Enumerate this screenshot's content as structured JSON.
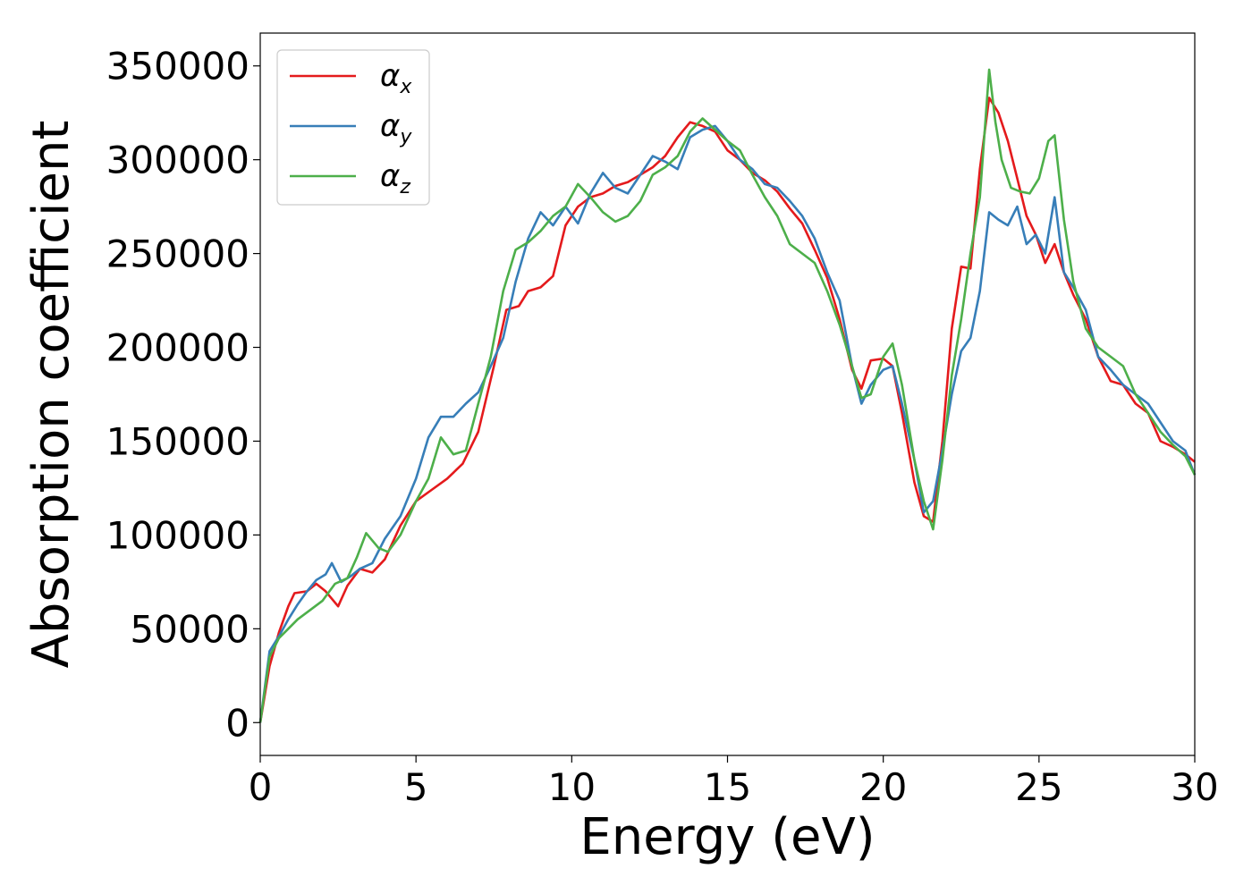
{
  "chart_data": {
    "type": "line",
    "xlabel": "Energy (eV)",
    "ylabel": "Absorption coefficient",
    "xlim": [
      0,
      30
    ],
    "ylim": [
      -17500,
      367500
    ],
    "xticks": [
      0,
      5,
      10,
      15,
      20,
      25,
      30
    ],
    "xtick_labels": [
      "0",
      "5",
      "10",
      "15",
      "20",
      "25",
      "30"
    ],
    "yticks": [
      0,
      50000,
      100000,
      150000,
      200000,
      250000,
      300000,
      350000
    ],
    "ytick_labels": [
      "0",
      "50000",
      "100000",
      "150000",
      "200000",
      "250000",
      "300000",
      "350000"
    ],
    "grid": false,
    "legend_position": "top-left",
    "series": [
      {
        "name": "α",
        "subscript": "x",
        "color": "#e41a1c",
        "x": [
          0,
          0.3,
          0.6,
          0.9,
          1.1,
          1.5,
          1.8,
          2.1,
          2.5,
          2.8,
          3.2,
          3.6,
          4.0,
          4.5,
          5.0,
          5.5,
          6.0,
          6.5,
          7.0,
          7.5,
          7.9,
          8.3,
          8.6,
          9.0,
          9.4,
          9.8,
          10.2,
          10.6,
          11.0,
          11.4,
          11.8,
          12.2,
          12.6,
          13.0,
          13.4,
          13.8,
          14.2,
          14.6,
          15.0,
          15.4,
          15.8,
          16.2,
          16.6,
          17.0,
          17.4,
          17.8,
          18.2,
          18.6,
          19.0,
          19.3,
          19.6,
          20.0,
          20.3,
          20.6,
          21.0,
          21.3,
          21.6,
          21.9,
          22.2,
          22.5,
          22.8,
          23.1,
          23.4,
          23.7,
          24.0,
          24.3,
          24.6,
          24.9,
          25.2,
          25.5,
          25.8,
          26.1,
          26.5,
          26.9,
          27.3,
          27.7,
          28.1,
          28.5,
          28.9,
          29.3,
          29.7,
          30.0
        ],
        "y": [
          0,
          30000,
          48000,
          62000,
          69000,
          70000,
          74000,
          70000,
          62000,
          73000,
          82000,
          80000,
          87000,
          105000,
          118000,
          124000,
          130000,
          138000,
          155000,
          190000,
          220000,
          222000,
          230000,
          232000,
          238000,
          265000,
          275000,
          280000,
          282000,
          286000,
          288000,
          292000,
          296000,
          302000,
          312000,
          320000,
          318000,
          315000,
          305000,
          300000,
          293000,
          289000,
          283000,
          274000,
          266000,
          252000,
          237000,
          215000,
          188000,
          178000,
          193000,
          194000,
          190000,
          165000,
          128000,
          110000,
          107000,
          150000,
          210000,
          243000,
          242000,
          295000,
          333000,
          325000,
          310000,
          290000,
          270000,
          260000,
          245000,
          255000,
          240000,
          228000,
          215000,
          195000,
          182000,
          180000,
          170000,
          165000,
          150000,
          147000,
          143000,
          139000
        ]
      },
      {
        "name": "α",
        "subscript": "y",
        "color": "#377eb8",
        "x": [
          0,
          0.3,
          0.6,
          0.9,
          1.2,
          1.5,
          1.8,
          2.1,
          2.3,
          2.6,
          2.9,
          3.2,
          3.6,
          4.0,
          4.5,
          5.0,
          5.4,
          5.8,
          6.2,
          6.6,
          7.0,
          7.4,
          7.8,
          8.2,
          8.6,
          9.0,
          9.4,
          9.8,
          10.2,
          10.6,
          11.0,
          11.4,
          11.8,
          12.2,
          12.6,
          13.0,
          13.4,
          13.8,
          14.2,
          14.6,
          15.0,
          15.4,
          15.8,
          16.2,
          16.6,
          17.0,
          17.4,
          17.8,
          18.2,
          18.6,
          19.0,
          19.3,
          19.6,
          20.0,
          20.3,
          20.6,
          21.0,
          21.3,
          21.6,
          21.9,
          22.2,
          22.5,
          22.8,
          23.1,
          23.4,
          23.7,
          24.0,
          24.3,
          24.6,
          24.9,
          25.2,
          25.5,
          25.8,
          26.1,
          26.5,
          26.9,
          27.3,
          27.7,
          28.1,
          28.5,
          28.9,
          29.3,
          29.7,
          30.0
        ],
        "y": [
          0,
          38000,
          46000,
          55000,
          63000,
          70000,
          76000,
          79000,
          85000,
          75000,
          78000,
          82000,
          85000,
          98000,
          110000,
          130000,
          152000,
          163000,
          163000,
          170000,
          176000,
          190000,
          205000,
          235000,
          258000,
          272000,
          265000,
          275000,
          266000,
          282000,
          293000,
          285000,
          282000,
          292000,
          302000,
          299000,
          295000,
          312000,
          316000,
          318000,
          310000,
          300000,
          295000,
          287000,
          285000,
          278000,
          270000,
          258000,
          240000,
          225000,
          190000,
          170000,
          180000,
          188000,
          190000,
          170000,
          140000,
          112000,
          118000,
          145000,
          175000,
          198000,
          205000,
          230000,
          272000,
          268000,
          265000,
          275000,
          255000,
          260000,
          250000,
          280000,
          240000,
          232000,
          220000,
          195000,
          188000,
          180000,
          175000,
          170000,
          160000,
          150000,
          145000,
          132000
        ]
      },
      {
        "name": "α",
        "subscript": "z",
        "color": "#4daf4a",
        "x": [
          0,
          0.3,
          0.6,
          0.9,
          1.2,
          1.6,
          2.0,
          2.4,
          2.8,
          3.1,
          3.4,
          3.8,
          4.1,
          4.5,
          5.0,
          5.4,
          5.8,
          6.2,
          6.6,
          7.0,
          7.4,
          7.8,
          8.2,
          8.6,
          9.0,
          9.4,
          9.8,
          10.2,
          10.6,
          11.0,
          11.4,
          11.8,
          12.2,
          12.6,
          13.0,
          13.4,
          13.8,
          14.2,
          14.6,
          15.0,
          15.4,
          15.8,
          16.2,
          16.6,
          17.0,
          17.4,
          17.8,
          18.2,
          18.6,
          19.0,
          19.3,
          19.6,
          20.0,
          20.3,
          20.6,
          21.0,
          21.3,
          21.6,
          21.9,
          22.2,
          22.5,
          22.8,
          23.1,
          23.4,
          23.6,
          23.8,
          24.1,
          24.4,
          24.7,
          25.0,
          25.3,
          25.5,
          25.8,
          26.1,
          26.5,
          26.9,
          27.3,
          27.7,
          28.1,
          28.5,
          28.9,
          29.3,
          29.7,
          30.0
        ],
        "y": [
          0,
          35000,
          45000,
          50000,
          55000,
          60000,
          65000,
          74000,
          77000,
          88000,
          101000,
          93000,
          91000,
          100000,
          118000,
          130000,
          152000,
          143000,
          145000,
          170000,
          195000,
          230000,
          252000,
          256000,
          262000,
          270000,
          275000,
          287000,
          280000,
          272000,
          267000,
          270000,
          278000,
          292000,
          296000,
          302000,
          315000,
          322000,
          316000,
          310000,
          305000,
          292000,
          280000,
          270000,
          255000,
          250000,
          245000,
          230000,
          212000,
          190000,
          173000,
          175000,
          195000,
          202000,
          180000,
          140000,
          118000,
          103000,
          140000,
          185000,
          215000,
          250000,
          280000,
          348000,
          320000,
          300000,
          285000,
          283000,
          282000,
          290000,
          310000,
          313000,
          268000,
          235000,
          210000,
          200000,
          195000,
          190000,
          175000,
          165000,
          155000,
          148000,
          142000,
          132000
        ]
      }
    ]
  }
}
